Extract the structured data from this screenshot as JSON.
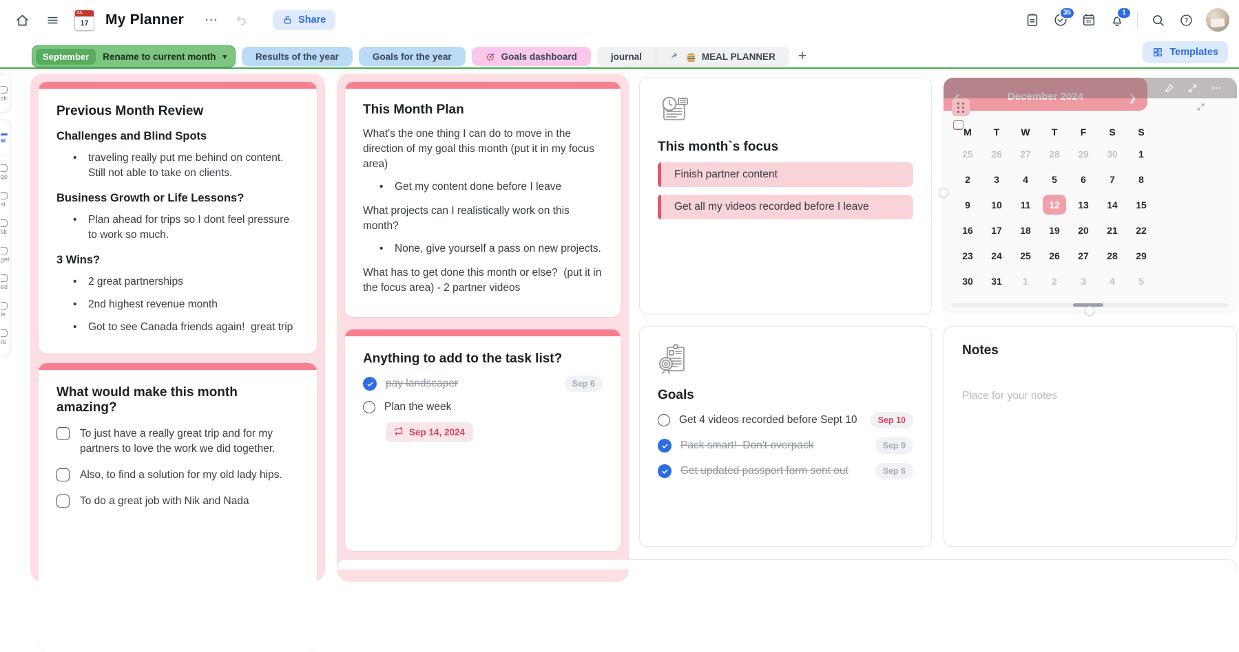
{
  "colors": {
    "accent_blue": "#2d6ce3",
    "tab_green": "#7cc681",
    "green_line": "#3fb04a",
    "red_bar": "#f87f90",
    "pink_wrap": "#fcdee3",
    "focus_bg": "#fad3d9",
    "focus_bar": "#e4556a",
    "cal_header": "#ef9aa3",
    "cal_selected": "#f0a1a7",
    "red_text": "#e23d5a"
  },
  "topbar": {
    "title": "My Planner",
    "doc_icon": {
      "month": "JUL",
      "day": "17"
    },
    "more_label": "⋯",
    "share_label": "Share",
    "badges": {
      "tasks": "35",
      "notifications": "1"
    },
    "calendar_icon_day": "31",
    "help_glyph": "?"
  },
  "tabbar": {
    "active": {
      "badge": "September",
      "label": "Rename to current month",
      "chevron": "▾"
    },
    "tabs": [
      {
        "label": "Results of the year",
        "style": "blue"
      },
      {
        "label": "Goals for the year",
        "style": "blue"
      },
      {
        "label": "Goals dashboard",
        "style": "pink",
        "icon": "target"
      }
    ],
    "group_tabs": [
      {
        "label": "journal"
      },
      {
        "label": "MEAL PLANNER",
        "icon": "burger",
        "arrow": true
      }
    ],
    "add_label": "+",
    "templates_label": "Templates"
  },
  "palette": {
    "groups": [
      {
        "items": [
          {
            "label": "ck"
          }
        ]
      },
      {
        "items": [
          {
            "label": "w",
            "active": true,
            "divider_after": true
          },
          {
            "label": "ge"
          },
          {
            "label": "st"
          },
          {
            "label": "sk"
          },
          {
            "label": "get"
          },
          {
            "label": "ed"
          },
          {
            "label": "le"
          },
          {
            "label": "re"
          }
        ]
      }
    ]
  },
  "cards": {
    "prev_review": {
      "title": "Previous Month Review",
      "sections": [
        {
          "heading": "Challenges and Blind Spots",
          "bullets": [
            "traveling really put me behind on content.  Still not able to take on clients."
          ]
        },
        {
          "heading": "Business Growth or Life Lessons?",
          "bullets": [
            "Plan ahead for trips so I dont feel pressure to work so much."
          ]
        },
        {
          "heading": "3 Wins?",
          "bullets": [
            "2 great partnerships",
            "2nd highest revenue month",
            "Got to see Canada friends again!  great trip"
          ]
        }
      ]
    },
    "amazing": {
      "title": "What would make this month amazing?",
      "items": [
        {
          "text": "To just have a really great trip and for my partners to love the work we did together.",
          "checked": false
        },
        {
          "text": "Also, to find a solution for my old lady hips.",
          "checked": false
        },
        {
          "text": "To do a great job with Nik and Nada",
          "checked": false
        }
      ]
    },
    "month_plan": {
      "title": "This Month Plan",
      "blocks": [
        {
          "type": "p",
          "text": "What's the one thing I can do to move in the direction of my goal this month (put it in my focus area)"
        },
        {
          "type": "bullet",
          "text": "Get my content done before I leave"
        },
        {
          "type": "p",
          "text": "What projects can I realistically work on this month?"
        },
        {
          "type": "bullet",
          "text": "None, give yourself a pass on new projects."
        },
        {
          "type": "p",
          "text": "What has to get done this month or else?  (put it in the focus area) - 2 partner videos"
        }
      ]
    },
    "tasks": {
      "title": "Anything to add to the task list?",
      "items": [
        {
          "text": "pay landscaper",
          "checked": true,
          "strike": true,
          "badge": "Sep 6",
          "badge_style": "gray"
        },
        {
          "text": "Plan the week",
          "checked": false
        }
      ],
      "repeat_date": "Sep 14, 2024"
    },
    "focus": {
      "title": "This month`s focus",
      "items": [
        "Finish partner content",
        "Get all my videos recorded before I leave"
      ]
    },
    "goals": {
      "title": "Goals",
      "items": [
        {
          "text": "Get 4 videos recorded before Sept 10",
          "checked": false,
          "badge": "Sep 10",
          "badge_style": "red"
        },
        {
          "text": "Pack smart!  Don't overpack",
          "checked": true,
          "strike": true,
          "badge": "Sep 9",
          "badge_style": "gray"
        },
        {
          "text": "Get updated passport form sent out",
          "checked": true,
          "strike": true,
          "badge": "Sep 6",
          "badge_style": "gray"
        }
      ]
    },
    "calendar": {
      "title": "December 2024",
      "prev_glyph": "❮",
      "next_glyph": "❯",
      "dow": [
        "M",
        "T",
        "W",
        "T",
        "F",
        "S",
        "S"
      ],
      "weeks": [
        [
          {
            "d": "25",
            "muted": true
          },
          {
            "d": "26",
            "muted": true
          },
          {
            "d": "27",
            "muted": true
          },
          {
            "d": "28",
            "muted": true
          },
          {
            "d": "29",
            "muted": true
          },
          {
            "d": "30",
            "muted": true
          },
          {
            "d": "1"
          }
        ],
        [
          {
            "d": "2"
          },
          {
            "d": "3"
          },
          {
            "d": "4"
          },
          {
            "d": "5"
          },
          {
            "d": "6"
          },
          {
            "d": "7"
          },
          {
            "d": "8"
          }
        ],
        [
          {
            "d": "9"
          },
          {
            "d": "10"
          },
          {
            "d": "11"
          },
          {
            "d": "12",
            "selected": true
          },
          {
            "d": "13"
          },
          {
            "d": "14"
          },
          {
            "d": "15"
          }
        ],
        [
          {
            "d": "16"
          },
          {
            "d": "17"
          },
          {
            "d": "18"
          },
          {
            "d": "19"
          },
          {
            "d": "20"
          },
          {
            "d": "21"
          },
          {
            "d": "22"
          }
        ],
        [
          {
            "d": "23"
          },
          {
            "d": "24"
          },
          {
            "d": "25"
          },
          {
            "d": "26"
          },
          {
            "d": "27"
          },
          {
            "d": "28"
          },
          {
            "d": "29"
          }
        ],
        [
          {
            "d": "30"
          },
          {
            "d": "31"
          },
          {
            "d": "1",
            "muted": true
          },
          {
            "d": "2",
            "muted": true
          },
          {
            "d": "3",
            "muted": true
          },
          {
            "d": "4",
            "muted": true
          },
          {
            "d": "5",
            "muted": true
          }
        ]
      ]
    },
    "notes": {
      "title": "Notes",
      "placeholder": "Place for your notes"
    }
  }
}
